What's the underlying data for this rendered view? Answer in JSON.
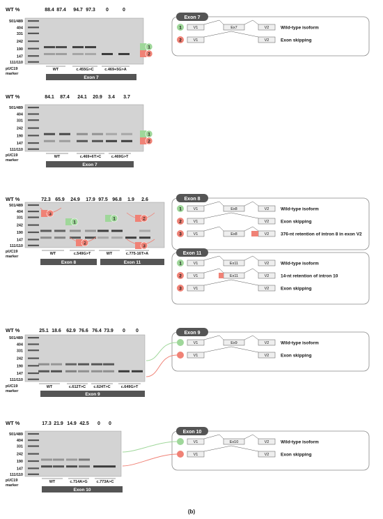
{
  "figure_label": "(b)",
  "wt_label": "WT %",
  "marker_label": "pUC19 marker",
  "colors": {
    "green": "#9fd79a",
    "red": "#f08276",
    "dark": "#555555",
    "gel": "#c9c9c9"
  },
  "panels": [
    {
      "wt_values": [
        "88.4",
        "87.4",
        "94.7",
        "97.3",
        "0",
        "0"
      ],
      "ladder": [
        "501/489",
        "404",
        "331",
        "242",
        "190",
        "147",
        "111/110"
      ],
      "variants": [
        "WT",
        "c.455G>C",
        "c.469+5G>A"
      ],
      "exon_bar": "Exon 7"
    },
    {
      "wt_values": [
        "84.1",
        "87.4",
        "24.1",
        "20.9",
        "3.4",
        "3.7"
      ],
      "ladder": [
        "501/489",
        "404",
        "331",
        "242",
        "190",
        "147",
        "111/110"
      ],
      "variants": [
        "WT",
        "c.469+6T>C",
        "c.469G>T"
      ],
      "exon_bar": "Exon 7"
    },
    {
      "wt_values": [
        "72.3",
        "65.9",
        "24.9",
        "17.9",
        "97.5",
        "96.8",
        "1.9",
        "2.6"
      ],
      "ladder": [
        "501/489",
        "404",
        "331",
        "242",
        "190",
        "147",
        "111/110"
      ],
      "variants": [
        "WT",
        "c.549G>T",
        "WT",
        "c.775-16T>A"
      ],
      "exon_bars": [
        "Exon 8",
        "Exon 11"
      ]
    },
    {
      "wt_values": [
        "25.1",
        "18.6",
        "62.9",
        "76.6",
        "76.4",
        "73.9",
        "0",
        "0"
      ],
      "ladder": [
        "501/489",
        "404",
        "331",
        "242",
        "190",
        "147",
        "111/110"
      ],
      "variants": [
        "WT",
        "c.612T>C",
        "c.624T>C",
        "c.649G>T"
      ],
      "exon_bar": "Exon 9"
    },
    {
      "wt_values": [
        "17.3",
        "21.9",
        "14.9",
        "42.5",
        "0",
        "0"
      ],
      "ladder": [
        "501/489",
        "404",
        "331",
        "242",
        "190",
        "147",
        "111/110"
      ],
      "variants": [
        "WT",
        "c.714A>G",
        "c.773A>C"
      ],
      "exon_bar": "Exon 10"
    }
  ],
  "legends": [
    {
      "title": "Exon 7",
      "rows": [
        {
          "n": "1",
          "v1": "V1",
          "ex": "Ex7",
          "v2": "V2",
          "label": "Wild-type isoform"
        },
        {
          "n": "2",
          "v1": "V1",
          "ex": "",
          "v2": "V2",
          "label": "Exon skipping"
        }
      ]
    },
    {
      "title": "Exon 8",
      "rows": [
        {
          "n": "1",
          "v1": "V1",
          "ex": "Ex8",
          "v2": "V2",
          "label": "Wild-type isoform"
        },
        {
          "n": "2",
          "v1": "V1",
          "ex": "",
          "v2": "V2",
          "label": "Exon skipping"
        },
        {
          "n": "3",
          "v1": "V1",
          "ex": "Ex8",
          "v2": "V2",
          "label": "376-nt retention of intron 8 in exon V2"
        }
      ]
    },
    {
      "title": "Exon 11",
      "rows": [
        {
          "n": "1",
          "v1": "V1",
          "ex": "Ex11",
          "v2": "V2",
          "label": "Wild-type isoform"
        },
        {
          "n": "2",
          "v1": "V1",
          "ex": "Ex11",
          "v2": "V2",
          "label": "14-nt retention of intron 10"
        },
        {
          "n": "3",
          "v1": "V1",
          "ex": "",
          "v2": "V2",
          "label": "Exon skipping"
        }
      ]
    },
    {
      "title": "Exon 9",
      "rows": [
        {
          "n": "",
          "v1": "V1",
          "ex": "Ex9",
          "v2": "V2",
          "label": "Wild-type isoform"
        },
        {
          "n": "",
          "v1": "V1",
          "ex": "",
          "v2": "V2",
          "label": "Exon skipping"
        }
      ]
    },
    {
      "title": "Exon 10",
      "rows": [
        {
          "n": "",
          "v1": "V1",
          "ex": "Ex10",
          "v2": "V2",
          "label": "Wild-type isoform"
        },
        {
          "n": "",
          "v1": "V1",
          "ex": "",
          "v2": "V2",
          "label": "Exon skipping"
        }
      ]
    }
  ]
}
